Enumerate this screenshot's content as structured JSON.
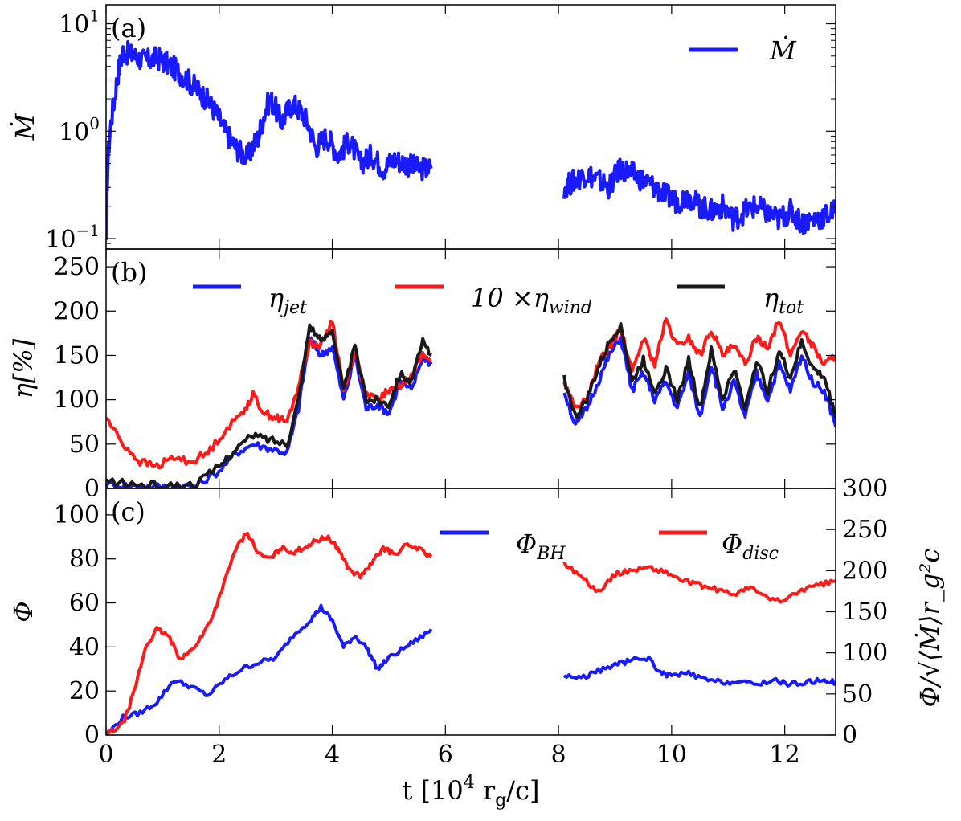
{
  "chart_data": [
    {
      "panel": "(a)",
      "type": "line",
      "yscale": "log",
      "ylabel": "Ṁ",
      "ylim": [
        0.08,
        15
      ],
      "xlim": [
        0,
        12.9
      ],
      "yticks": [
        {
          "value": 10,
          "base": "10",
          "exp": "1"
        },
        {
          "value": 1,
          "base": "10",
          "exp": "0"
        },
        {
          "value": 0.1,
          "base": "10",
          "exp": "−1"
        }
      ],
      "legend": {
        "position": "top-right",
        "entries": [
          "Ṁ"
        ]
      },
      "series": [
        {
          "name": "Ṁ",
          "color": "#1a1aff",
          "segments": [
            {
              "x": [
                0,
                0.15,
                0.3,
                0.5,
                0.7,
                0.9,
                1.1,
                1.3,
                1.5,
                1.7,
                1.9,
                2.1,
                2.3,
                2.5,
                2.7,
                2.9,
                3.1,
                3.3,
                3.5,
                3.7,
                3.9,
                4.1,
                4.3,
                4.5,
                4.7,
                4.9,
                5.1,
                5.3,
                5.5,
                5.75
              ],
              "y": [
                0.08,
                2.0,
                5.5,
                5.0,
                4.5,
                4.8,
                4.2,
                3.5,
                2.8,
                2.2,
                1.6,
                1.0,
                0.7,
                0.55,
                0.9,
                2.0,
                1.2,
                1.8,
                1.4,
                0.7,
                0.9,
                0.6,
                0.8,
                0.5,
                0.6,
                0.45,
                0.55,
                0.5,
                0.45,
                0.45
              ]
            },
            {
              "x": [
                8.1,
                8.3,
                8.5,
                8.7,
                8.9,
                9.1,
                9.3,
                9.5,
                9.7,
                9.9,
                10.1,
                10.3,
                10.5,
                10.7,
                10.9,
                11.1,
                11.3,
                11.5,
                11.7,
                11.9,
                12.1,
                12.3,
                12.5,
                12.7,
                12.9
              ],
              "y": [
                0.3,
                0.35,
                0.4,
                0.35,
                0.3,
                0.45,
                0.4,
                0.35,
                0.3,
                0.25,
                0.22,
                0.25,
                0.2,
                0.18,
                0.2,
                0.15,
                0.18,
                0.2,
                0.17,
                0.15,
                0.18,
                0.14,
                0.15,
                0.16,
                0.18
              ]
            }
          ]
        }
      ]
    },
    {
      "panel": "(b)",
      "type": "line",
      "ylabel": "η[%]",
      "ylim": [
        0,
        270
      ],
      "xlim": [
        0,
        12.9
      ],
      "yticks": [
        "0",
        "50",
        "100",
        "150",
        "200",
        "250"
      ],
      "legend": {
        "position": "top",
        "entries": [
          "η_jet",
          "10 ×η_wind",
          "η_tot"
        ]
      },
      "series": [
        {
          "name": "η_jet",
          "color": "#1a1aff",
          "segments": [
            {
              "x": [
                0,
                0.4,
                0.8,
                1.2,
                1.6,
                2.0,
                2.3,
                2.6,
                2.9,
                3.2,
                3.4,
                3.6,
                3.8,
                4.0,
                4.2,
                4.4,
                4.6,
                4.8,
                5.0,
                5.2,
                5.4,
                5.6,
                5.75
              ],
              "y": [
                5,
                3,
                2,
                2,
                3,
                20,
                40,
                50,
                45,
                40,
                90,
                170,
                150,
                160,
                100,
                150,
                90,
                95,
                85,
                120,
                110,
                150,
                140
              ]
            },
            {
              "x": [
                8.1,
                8.3,
                8.5,
                8.7,
                8.9,
                9.1,
                9.3,
                9.5,
                9.7,
                9.9,
                10.1,
                10.3,
                10.5,
                10.7,
                10.9,
                11.1,
                11.3,
                11.5,
                11.7,
                11.9,
                12.1,
                12.3,
                12.5,
                12.7,
                12.9
              ],
              "y": [
                110,
                70,
                90,
                120,
                150,
                170,
                110,
                130,
                100,
                120,
                90,
                130,
                80,
                140,
                90,
                120,
                80,
                130,
                100,
                140,
                110,
                150,
                120,
                110,
                70
              ]
            }
          ]
        },
        {
          "name": "10 ×η_wind",
          "color": "#ff1a1a",
          "segments": [
            {
              "x": [
                0,
                0.3,
                0.6,
                0.9,
                1.2,
                1.5,
                1.8,
                2.1,
                2.4,
                2.6,
                2.8,
                3.0,
                3.2,
                3.4,
                3.6,
                3.8,
                4.0,
                4.2,
                4.4,
                4.6,
                4.8,
                5.0,
                5.2,
                5.4,
                5.6,
                5.75
              ],
              "y": [
                80,
                50,
                30,
                25,
                35,
                30,
                40,
                65,
                85,
                105,
                85,
                80,
                75,
                115,
                165,
                160,
                190,
                110,
                155,
                105,
                100,
                110,
                115,
                130,
                150,
                145
              ]
            },
            {
              "x": [
                8.1,
                8.3,
                8.5,
                8.7,
                8.9,
                9.1,
                9.3,
                9.5,
                9.7,
                9.9,
                10.1,
                10.3,
                10.5,
                10.7,
                10.9,
                11.1,
                11.3,
                11.5,
                11.7,
                11.9,
                12.1,
                12.3,
                12.5,
                12.7,
                12.9
              ],
              "y": [
                120,
                90,
                100,
                140,
                160,
                180,
                130,
                170,
                140,
                190,
                160,
                170,
                150,
                180,
                150,
                160,
                140,
                170,
                160,
                190,
                150,
                180,
                160,
                140,
                150
              ]
            }
          ]
        },
        {
          "name": "η_tot",
          "color": "#1a1a1a",
          "segments": [
            {
              "x": [
                0,
                0.4,
                0.8,
                1.2,
                1.6,
                2.0,
                2.3,
                2.6,
                2.9,
                3.2,
                3.4,
                3.6,
                3.8,
                4.0,
                4.2,
                4.4,
                4.6,
                4.8,
                5.0,
                5.2,
                5.4,
                5.6,
                5.75
              ],
              "y": [
                8,
                5,
                3,
                3,
                5,
                25,
                45,
                60,
                55,
                50,
                100,
                185,
                165,
                180,
                110,
                160,
                100,
                100,
                95,
                130,
                120,
                165,
                150
              ]
            },
            {
              "x": [
                8.1,
                8.3,
                8.5,
                8.7,
                8.9,
                9.1,
                9.3,
                9.5,
                9.7,
                9.9,
                10.1,
                10.3,
                10.5,
                10.7,
                10.9,
                11.1,
                11.3,
                11.5,
                11.7,
                11.9,
                12.1,
                12.3,
                12.5,
                12.7,
                12.9
              ],
              "y": [
                125,
                80,
                100,
                135,
                165,
                185,
                120,
                145,
                110,
                135,
                100,
                145,
                90,
                155,
                100,
                135,
                90,
                145,
                110,
                155,
                125,
                165,
                135,
                125,
                80
              ]
            }
          ]
        }
      ]
    },
    {
      "panel": "(c)",
      "type": "line",
      "ylabel": "Φ",
      "ylim": [
        0,
        112
      ],
      "xlim": [
        0,
        12.9
      ],
      "xlabel": "t [10⁴ r_g/c]",
      "xticks": [
        "0",
        "2",
        "4",
        "6",
        "8",
        "10",
        "12"
      ],
      "yticks": [
        "0",
        "20",
        "40",
        "60",
        "80",
        "100"
      ],
      "y2label": "Φ/√⟨Ṁ⟩r_g²c",
      "y2lim": [
        0,
        300
      ],
      "y2ticks": [
        "0",
        "50",
        "100",
        "150",
        "200",
        "250",
        "300"
      ],
      "legend": {
        "position": "top-right",
        "entries": [
          "Φ_BH",
          "Φ_disc"
        ]
      },
      "series": [
        {
          "name": "Φ_BH",
          "color": "#1a1aff",
          "segments": [
            {
              "x": [
                0,
                0.3,
                0.6,
                0.9,
                1.2,
                1.5,
                1.8,
                2.1,
                2.4,
                2.7,
                3.0,
                3.3,
                3.6,
                3.8,
                4.0,
                4.2,
                4.4,
                4.6,
                4.8,
                5.0,
                5.3,
                5.6,
                5.75
              ],
              "y": [
                0,
                8,
                10,
                15,
                25,
                22,
                18,
                25,
                30,
                33,
                35,
                45,
                52,
                58,
                52,
                40,
                45,
                40,
                30,
                35,
                40,
                45,
                48
              ]
            },
            {
              "x": [
                8.1,
                8.4,
                8.7,
                9.0,
                9.3,
                9.6,
                9.8,
                10.0,
                10.3,
                10.6,
                10.9,
                11.2,
                11.5,
                11.8,
                12.1,
                12.4,
                12.7,
                12.9
              ],
              "y": [
                27,
                26,
                29,
                32,
                34,
                35,
                28,
                27,
                28,
                25,
                24,
                24,
                23,
                25,
                23,
                24,
                25,
                24
              ]
            }
          ]
        },
        {
          "name": "Φ_disc",
          "color": "#ff1a1a",
          "segments": [
            {
              "x": [
                0,
                0.3,
                0.5,
                0.7,
                0.9,
                1.1,
                1.3,
                1.5,
                1.7,
                1.9,
                2.1,
                2.3,
                2.5,
                2.7,
                2.9,
                3.1,
                3.3,
                3.5,
                3.7,
                3.9,
                4.1,
                4.3,
                4.5,
                4.7,
                4.9,
                5.1,
                5.3,
                5.5,
                5.75
              ],
              "y": [
                0,
                5,
                20,
                40,
                48,
                45,
                35,
                38,
                45,
                55,
                70,
                85,
                92,
                82,
                80,
                85,
                83,
                85,
                88,
                90,
                85,
                75,
                72,
                78,
                85,
                82,
                86,
                85,
                81
              ]
            },
            {
              "x": [
                8.1,
                8.4,
                8.7,
                9.0,
                9.3,
                9.6,
                9.9,
                10.2,
                10.5,
                10.8,
                11.1,
                11.4,
                11.7,
                12.0,
                12.3,
                12.6,
                12.9
              ],
              "y": [
                78,
                72,
                65,
                73,
                75,
                76,
                74,
                70,
                68,
                66,
                64,
                67,
                62,
                61,
                66,
                68,
                70
              ]
            }
          ]
        }
      ]
    }
  ]
}
